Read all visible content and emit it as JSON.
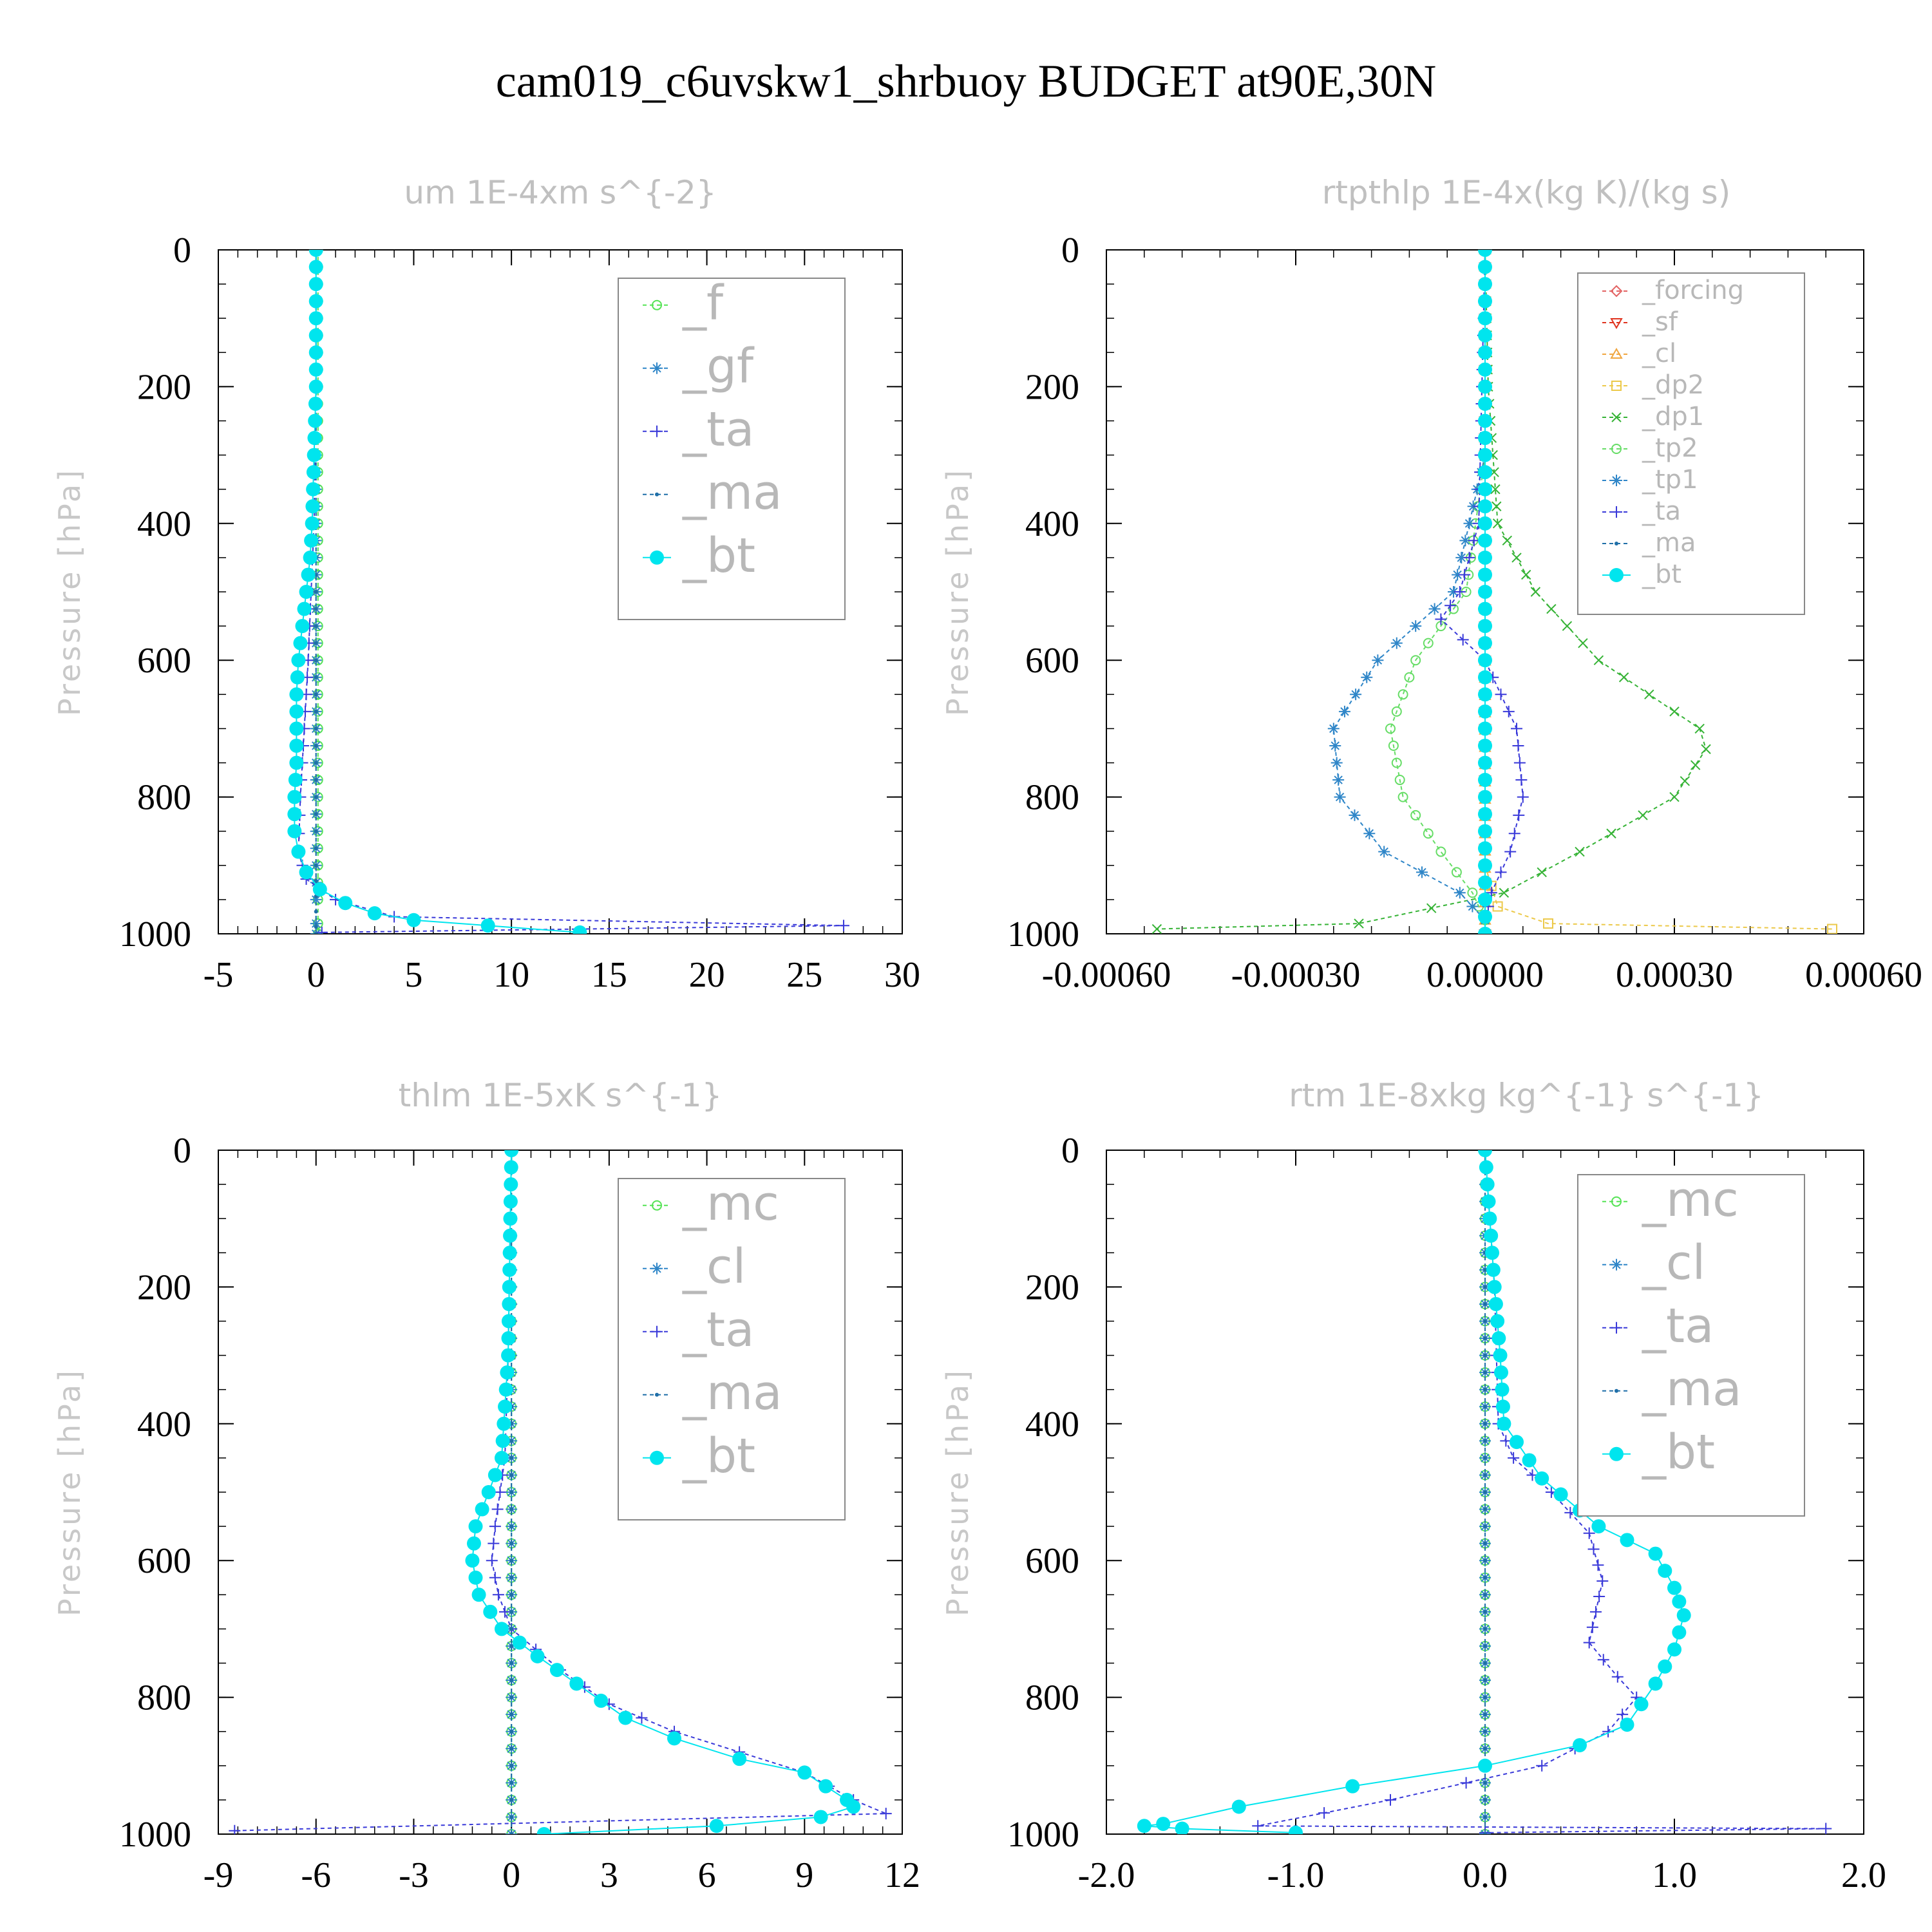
{
  "title": "cam019_c6uvskw1_shrbuoy  BUDGET at90E,30N",
  "colors": {
    "f": "#55e355",
    "mc": "#55e355",
    "gf": "#2f86c8",
    "cl": "#2f86c8",
    "ta": "#3a3ad9",
    "ma": "#1f6fa8",
    "bt": "#00e5ee",
    "forcing": "#e36363",
    "sf": "#e0341f",
    "cl_y": "#f0a640",
    "dp2": "#ecc94a",
    "dp1": "#36b336",
    "tp2": "#66dd66",
    "tp1": "#2f86c8"
  },
  "chart_data": [
    {
      "type": "line",
      "title": "um  1E-4xm s^{-2}",
      "ylabel": "Pressure [hPa]",
      "xlim": [
        -5,
        30
      ],
      "ylim": [
        1000,
        0
      ],
      "xticks": [
        "-5",
        "0",
        "5",
        "10",
        "15",
        "20",
        "25",
        "30"
      ],
      "yticks": [
        "0",
        "200",
        "400",
        "600",
        "800",
        "1000"
      ],
      "legend_position": "top-right",
      "series": [
        {
          "name": "_f",
          "marker": "circle-open",
          "color": "#55e355",
          "points": [
            [
              0.1,
              0
            ],
            [
              0.1,
              200
            ],
            [
              0.1,
              400
            ],
            [
              0.1,
              600
            ],
            [
              0.1,
              800
            ],
            [
              0.1,
              950
            ],
            [
              0.1,
              985
            ],
            [
              0.1,
              1000
            ]
          ]
        },
        {
          "name": "_gf",
          "marker": "asterisk",
          "color": "#2f86c8",
          "points": [
            [
              0,
              0
            ],
            [
              0,
              400
            ],
            [
              0,
              800
            ],
            [
              0,
              950
            ],
            [
              0,
              985
            ],
            [
              0,
              1000
            ]
          ]
        },
        {
          "name": "_ta",
          "marker": "plus",
          "color": "#3a3ad9",
          "points": [
            [
              0,
              0
            ],
            [
              0,
              200
            ],
            [
              -0.1,
              400
            ],
            [
              -0.4,
              600
            ],
            [
              -0.8,
              800
            ],
            [
              -0.9,
              880
            ],
            [
              -0.5,
              920
            ],
            [
              1,
              950
            ],
            [
              4,
              975
            ],
            [
              27,
              988
            ],
            [
              0.3,
              998
            ]
          ]
        },
        {
          "name": "_ma",
          "marker": "dot",
          "color": "#1f6fa8",
          "points": [
            [
              0,
              0
            ],
            [
              0,
              500
            ],
            [
              0,
              900
            ],
            [
              0,
              990
            ],
            [
              0,
              1000
            ]
          ]
        },
        {
          "name": "_bt",
          "marker": "filled-circle",
          "color": "#00e5ee",
          "points": [
            [
              0,
              0
            ],
            [
              0,
              100
            ],
            [
              0,
              200
            ],
            [
              -0.1,
              300
            ],
            [
              -0.2,
              400
            ],
            [
              -0.3,
              450
            ],
            [
              -0.5,
              500
            ],
            [
              -0.7,
              550
            ],
            [
              -0.9,
              600
            ],
            [
              -1,
              650
            ],
            [
              -1,
              700
            ],
            [
              -1,
              750
            ],
            [
              -1.1,
              800
            ],
            [
              -1.1,
              850
            ],
            [
              -0.9,
              880
            ],
            [
              -0.5,
              910
            ],
            [
              0.2,
              935
            ],
            [
              1.5,
              955
            ],
            [
              3,
              970
            ],
            [
              5,
              980
            ],
            [
              8.8,
              988
            ],
            [
              13.5,
              998
            ]
          ]
        }
      ]
    },
    {
      "type": "line",
      "title": "rtpthlp  1E-4x(kg K)/(kg s)",
      "ylabel": "Pressure [hPa]",
      "xlim": [
        -0.0006,
        0.0006
      ],
      "ylim": [
        1000,
        0
      ],
      "xticks": [
        "-0.00060",
        "-0.00030",
        "0.00000",
        "0.00030",
        "0.00060"
      ],
      "yticks": [
        "0",
        "200",
        "400",
        "600",
        "800",
        "1000"
      ],
      "legend_position": "top-right",
      "series": [
        {
          "name": "_forcing",
          "marker": "diamond-open",
          "color": "#e36363",
          "points": [
            [
              0,
              0
            ],
            [
              0,
              500
            ],
            [
              0,
              1000
            ]
          ]
        },
        {
          "name": "_sf",
          "marker": "triangle-down",
          "color": "#e0341f",
          "points": [
            [
              0,
              0
            ],
            [
              0,
              500
            ],
            [
              0,
              1000
            ]
          ]
        },
        {
          "name": "_cl",
          "marker": "triangle-up",
          "color": "#f0a640",
          "points": [
            [
              0,
              0
            ],
            [
              0,
              500
            ],
            [
              0,
              980
            ],
            [
              0,
              1000
            ]
          ]
        },
        {
          "name": "_dp2",
          "marker": "square-open",
          "color": "#ecc94a",
          "points": [
            [
              0,
              0
            ],
            [
              0,
              600
            ],
            [
              0,
              900
            ],
            [
              2e-05,
              960
            ],
            [
              0.0001,
              985
            ],
            [
              0.00055,
              993
            ]
          ]
        },
        {
          "name": "_dp1",
          "marker": "x",
          "color": "#36b336",
          "points": [
            [
              0,
              0
            ],
            [
              5e-06,
              200
            ],
            [
              2e-05,
              400
            ],
            [
              8e-05,
              500
            ],
            [
              0.00018,
              600
            ],
            [
              0.00034,
              700
            ],
            [
              0.00035,
              730
            ],
            [
              0.0003,
              800
            ],
            [
              0.00015,
              880
            ],
            [
              3e-05,
              940
            ],
            [
              -0.0002,
              985
            ],
            [
              -0.00052,
              993
            ]
          ]
        },
        {
          "name": "_tp2",
          "marker": "circle-open",
          "color": "#66dd66",
          "points": [
            [
              0,
              0
            ],
            [
              0,
              300
            ],
            [
              -3e-05,
              500
            ],
            [
              -0.00011,
              600
            ],
            [
              -0.00015,
              700
            ],
            [
              -0.00013,
              800
            ],
            [
              -7e-05,
              880
            ],
            [
              -2e-05,
              940
            ],
            [
              0,
              980
            ]
          ]
        },
        {
          "name": "_tp1",
          "marker": "asterisk",
          "color": "#2f86c8",
          "points": [
            [
              0,
              0
            ],
            [
              0,
              300
            ],
            [
              -5e-05,
              500
            ],
            [
              -0.00017,
              600
            ],
            [
              -0.00024,
              700
            ],
            [
              -0.00023,
              800
            ],
            [
              -0.00016,
              880
            ],
            [
              -4e-05,
              940
            ],
            [
              0,
              980
            ]
          ]
        },
        {
          "name": "_ta",
          "marker": "plus",
          "color": "#3a3ad9",
          "points": [
            [
              0,
              0
            ],
            [
              -1e-05,
              400
            ],
            [
              -4e-05,
              500
            ],
            [
              -7e-05,
              540
            ],
            [
              0,
              600
            ],
            [
              5e-05,
              700
            ],
            [
              6e-05,
              800
            ],
            [
              4e-05,
              880
            ],
            [
              1e-05,
              940
            ],
            [
              0,
              980
            ]
          ]
        },
        {
          "name": "_ma",
          "marker": "dot",
          "color": "#1f6fa8",
          "points": [
            [
              0,
              0
            ],
            [
              0,
              500
            ],
            [
              0,
              1000
            ]
          ]
        },
        {
          "name": "_bt",
          "marker": "filled-circle",
          "color": "#00e5ee",
          "points": [
            [
              0,
              0
            ],
            [
              0,
              200
            ],
            [
              0,
              400
            ],
            [
              0,
              600
            ],
            [
              0,
              800
            ],
            [
              0,
              1000
            ]
          ]
        }
      ]
    },
    {
      "type": "line",
      "title": "thlm  1E-5xK s^{-1}",
      "ylabel": "Pressure [hPa]",
      "xlim": [
        -9,
        12
      ],
      "ylim": [
        1000,
        0
      ],
      "xticks": [
        "-9",
        "-6",
        "-3",
        "0",
        "3",
        "6",
        "9",
        "12"
      ],
      "yticks": [
        "0",
        "200",
        "400",
        "600",
        "800",
        "1000"
      ],
      "legend_position": "top-right",
      "series": [
        {
          "name": "_mc",
          "marker": "circle-open",
          "color": "#55e355",
          "points": [
            [
              0,
              0
            ],
            [
              0,
              200
            ],
            [
              0,
              400
            ],
            [
              0,
              600
            ],
            [
              0,
              800
            ],
            [
              0,
              1000
            ]
          ]
        },
        {
          "name": "_cl",
          "marker": "asterisk",
          "color": "#2f86c8",
          "points": [
            [
              0,
              0
            ],
            [
              0,
              500
            ],
            [
              0,
              1000
            ]
          ]
        },
        {
          "name": "_ta",
          "marker": "plus",
          "color": "#3a3ad9",
          "points": [
            [
              0,
              0
            ],
            [
              -0.1,
              300
            ],
            [
              -0.2,
              450
            ],
            [
              -0.5,
              550
            ],
            [
              -0.6,
              600
            ],
            [
              -0.4,
              650
            ],
            [
              0,
              700
            ],
            [
              1.5,
              760
            ],
            [
              3,
              810
            ],
            [
              5,
              850
            ],
            [
              7,
              880
            ],
            [
              9,
              910
            ],
            [
              10.5,
              950
            ],
            [
              11.5,
              970
            ],
            [
              -8.5,
              995
            ]
          ]
        },
        {
          "name": "_ma",
          "marker": "dot",
          "color": "#1f6fa8",
          "points": [
            [
              0,
              0
            ],
            [
              0,
              500
            ],
            [
              0,
              1000
            ]
          ]
        },
        {
          "name": "_bt",
          "marker": "filled-circle",
          "color": "#00e5ee",
          "points": [
            [
              0,
              0
            ],
            [
              -0.1,
              300
            ],
            [
              -0.3,
              450
            ],
            [
              -0.7,
              500
            ],
            [
              -1.1,
              550
            ],
            [
              -1.2,
              600
            ],
            [
              -1,
              650
            ],
            [
              -0.3,
              700
            ],
            [
              0.8,
              740
            ],
            [
              2,
              780
            ],
            [
              3.5,
              830
            ],
            [
              5,
              860
            ],
            [
              7,
              890
            ],
            [
              9,
              910
            ],
            [
              10.3,
              950
            ],
            [
              10.5,
              960
            ],
            [
              9.5,
              975
            ],
            [
              6.3,
              988
            ],
            [
              1,
              1000
            ]
          ]
        }
      ]
    },
    {
      "type": "line",
      "title": "rtm  1E-8xkg kg^{-1} s^{-1}",
      "ylabel": "Pressure [hPa]",
      "xlim": [
        -2,
        2
      ],
      "ylim": [
        1000,
        0
      ],
      "xticks": [
        "-2.0",
        "-1.0",
        "0.0",
        "1.0",
        "2.0"
      ],
      "yticks": [
        "0",
        "200",
        "400",
        "600",
        "800",
        "1000"
      ],
      "legend_position": "top-right",
      "series": [
        {
          "name": "_mc",
          "marker": "circle-open",
          "color": "#55e355",
          "points": [
            [
              0,
              0
            ],
            [
              0,
              200
            ],
            [
              0,
              400
            ],
            [
              0,
              600
            ],
            [
              0,
              800
            ],
            [
              0,
              1000
            ]
          ]
        },
        {
          "name": "_cl",
          "marker": "asterisk",
          "color": "#2f86c8",
          "points": [
            [
              0,
              0
            ],
            [
              0,
              500
            ],
            [
              0,
              1000
            ]
          ]
        },
        {
          "name": "_ta",
          "marker": "plus",
          "color": "#3a3ad9",
          "points": [
            [
              0,
              0
            ],
            [
              0.05,
              200
            ],
            [
              0.06,
              300
            ],
            [
              0.07,
              400
            ],
            [
              0.15,
              450
            ],
            [
              0.35,
              500
            ],
            [
              0.55,
              560
            ],
            [
              0.62,
              630
            ],
            [
              0.55,
              720
            ],
            [
              0.7,
              770
            ],
            [
              0.8,
              800
            ],
            [
              0.65,
              850
            ],
            [
              0.3,
              900
            ],
            [
              -0.5,
              950
            ],
            [
              -1.2,
              988
            ],
            [
              1.8,
              992
            ],
            [
              0,
              998
            ]
          ]
        },
        {
          "name": "_ma",
          "marker": "dot",
          "color": "#1f6fa8",
          "points": [
            [
              0,
              0
            ],
            [
              0,
              500
            ],
            [
              0,
              1000
            ]
          ]
        },
        {
          "name": "_bt",
          "marker": "filled-circle",
          "color": "#00e5ee",
          "points": [
            [
              0,
              0
            ],
            [
              0.05,
              200
            ],
            [
              0.08,
              300
            ],
            [
              0.1,
              400
            ],
            [
              0.3,
              480
            ],
            [
              0.6,
              550
            ],
            [
              0.9,
              590
            ],
            [
              1,
              640
            ],
            [
              1.05,
              680
            ],
            [
              1,
              730
            ],
            [
              0.9,
              780
            ],
            [
              0.75,
              840
            ],
            [
              0.5,
              870
            ],
            [
              0,
              900
            ],
            [
              -0.7,
              930
            ],
            [
              -1.3,
              960
            ],
            [
              -1.7,
              985
            ],
            [
              -1.8,
              988
            ],
            [
              -1.6,
              992
            ],
            [
              -1,
              998
            ]
          ]
        }
      ]
    }
  ]
}
